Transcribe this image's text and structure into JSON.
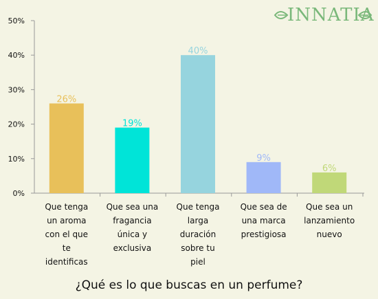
{
  "brand": {
    "name": "INNATIA",
    "color": "#7ab87a"
  },
  "caption": "¿Qué es lo que buscas en un perfume?",
  "chart_data": {
    "type": "bar",
    "title": "",
    "xlabel": "",
    "ylabel": "",
    "ylim": [
      0,
      50
    ],
    "yticks": [
      "0%",
      "10%",
      "20%",
      "30%",
      "40%",
      "50%"
    ],
    "grid": false,
    "categories": [
      "Que tenga un aroma con el que te identificas",
      "Que sea una fragancia única y exclusiva",
      "Que tenga larga duración sobre tu piel",
      "Que sea de una marca prestigiosa",
      "Que sea un lanzamiento nuevo"
    ],
    "category_lines": [
      [
        "Que tenga",
        "un aroma",
        "con el que",
        "te",
        "identificas"
      ],
      [
        "Que sea una",
        "fragancia",
        "única y",
        "exclusiva"
      ],
      [
        "Que tenga",
        "larga",
        "duración",
        "sobre tu",
        "piel"
      ],
      [
        "Que sea de",
        "una marca",
        "prestigiosa"
      ],
      [
        "Que sea un",
        "lanzamiento",
        "nuevo"
      ]
    ],
    "values": [
      26,
      19,
      40,
      9,
      6
    ],
    "labels": [
      "26%",
      "19%",
      "40%",
      "9%",
      "6%"
    ],
    "colors": [
      "#e8c05a",
      "#00e4d8",
      "#96d4de",
      "#a0b8f8",
      "#c0d878"
    ]
  }
}
